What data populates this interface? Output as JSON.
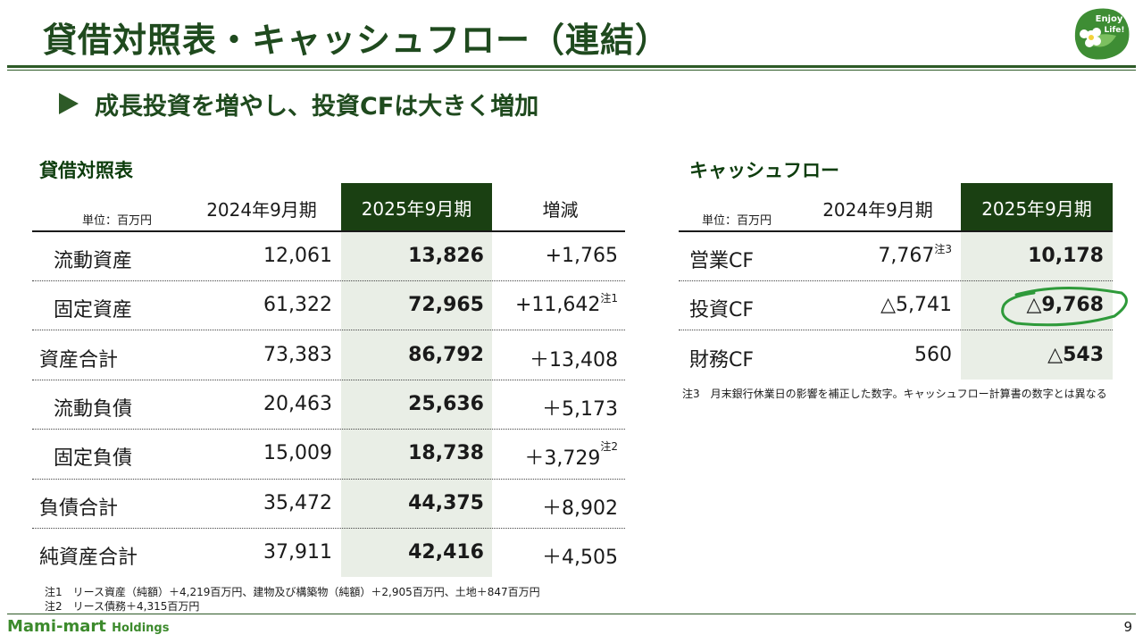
{
  "header": {
    "title": "貸借対照表・キャッシュフロー（連結）",
    "subtitle": "成長投資を増やし、投資CFは大きく増加",
    "logo_text_1": "Enjoy",
    "logo_text_2": "Life!"
  },
  "balance_sheet": {
    "section_title": "貸借対照表",
    "unit": "単位：百万円",
    "columns": [
      "2024年9月期",
      "2025年9月期",
      "増減"
    ],
    "rows": [
      {
        "label": "流動資産",
        "prev": "12,061",
        "curr": "13,826",
        "diff": "+1,765",
        "note": ""
      },
      {
        "label": "固定資産",
        "prev": "61,322",
        "curr": "72,965",
        "diff": "+11,642",
        "note": "注1"
      },
      {
        "label": "資産合計",
        "prev": "73,383",
        "curr": "86,792",
        "diff": "＋13,408",
        "note": ""
      },
      {
        "label": "流動負債",
        "prev": "20,463",
        "curr": "25,636",
        "diff": "＋5,173",
        "note": ""
      },
      {
        "label": "固定負債",
        "prev": "15,009",
        "curr": "18,738",
        "diff": "＋3,729",
        "note": "注2"
      },
      {
        "label": "負債合計",
        "prev": "35,472",
        "curr": "44,375",
        "diff": "＋8,902",
        "note": ""
      },
      {
        "label": "純資産合計",
        "prev": "37,911",
        "curr": "42,416",
        "diff": "＋4,505",
        "note": ""
      }
    ],
    "footnotes": [
      "注1　リース資産（純額）＋4,219百万円、建物及び構築物（純額）＋2,905百万円、土地＋847百万円",
      "注2　リース債務＋4,315百万円"
    ]
  },
  "cash_flow": {
    "section_title": "キャッシュフロー",
    "unit": "単位：百万円",
    "columns": [
      "2024年9月期",
      "2025年9月期"
    ],
    "rows": [
      {
        "label": "営業CF",
        "prev": "7,767",
        "prev_note": "注3",
        "curr": "10,178"
      },
      {
        "label": "投資CF",
        "prev": "△5,741",
        "prev_note": "",
        "curr": "△9,768"
      },
      {
        "label": "財務CF",
        "prev": "560",
        "prev_note": "",
        "curr": "△543"
      }
    ],
    "footnote": "注3　月末銀行休業日の影響を補正した数字。キャッシュフロー計算書の数字とは異なる"
  },
  "footer": {
    "company": "Mami-mart",
    "company_suffix": "Holdings",
    "page": "9"
  },
  "colors": {
    "brand_dark": "#1a4012",
    "highlight_bg": "#e9eee6",
    "accent_green": "#2e9a3a"
  }
}
